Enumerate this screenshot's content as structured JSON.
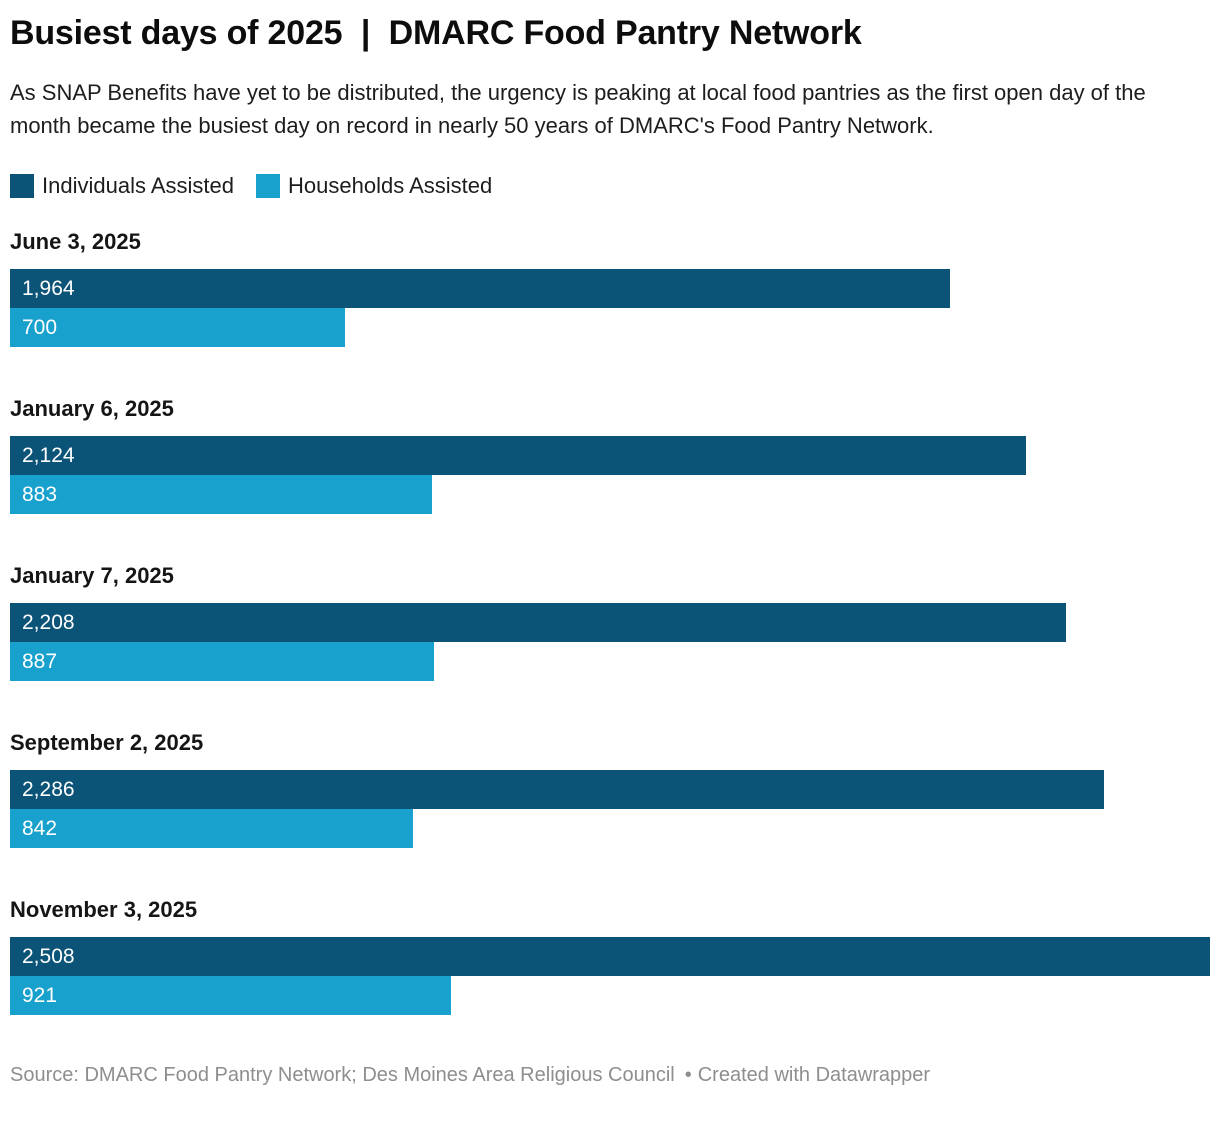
{
  "header": {
    "title": "Busiest days of 2025  |  DMARC Food Pantry Network",
    "description": "As SNAP Benefits have yet to be distributed, the urgency is peaking at local food pantries as the first open day of the month became the busiest day on record in nearly 50 years of DMARC's Food Pantry Network."
  },
  "legend": [
    {
      "label": "Individuals Assisted",
      "color": "#0b5377"
    },
    {
      "label": "Households Assisted",
      "color": "#18a1cd"
    }
  ],
  "chart_data": {
    "type": "bar",
    "orientation": "horizontal",
    "title": "Busiest days of 2025 | DMARC Food Pantry Network",
    "categories": [
      "June 3, 2025",
      "January 6, 2025",
      "January 7, 2025",
      "September 2, 2025",
      "November 3, 2025"
    ],
    "series": [
      {
        "name": "Individuals Assisted",
        "color": "#0b5377",
        "values": [
          1964,
          2124,
          2208,
          2286,
          2508
        ],
        "labels": [
          "1,964",
          "2,124",
          "2,208",
          "2,286",
          "2,508"
        ]
      },
      {
        "name": "Households Assisted",
        "color": "#18a1cd",
        "values": [
          700,
          883,
          887,
          842,
          921
        ],
        "labels": [
          "700",
          "883",
          "887",
          "842",
          "921"
        ]
      }
    ],
    "xmax": 2508,
    "grid": false,
    "legend_position": "top",
    "value_labels_inside_bars": true
  },
  "footer": {
    "source": "Source: DMARC Food Pantry Network; Des Moines Area Religious Council",
    "separator": "•",
    "attribution": "Created with Datawrapper"
  }
}
